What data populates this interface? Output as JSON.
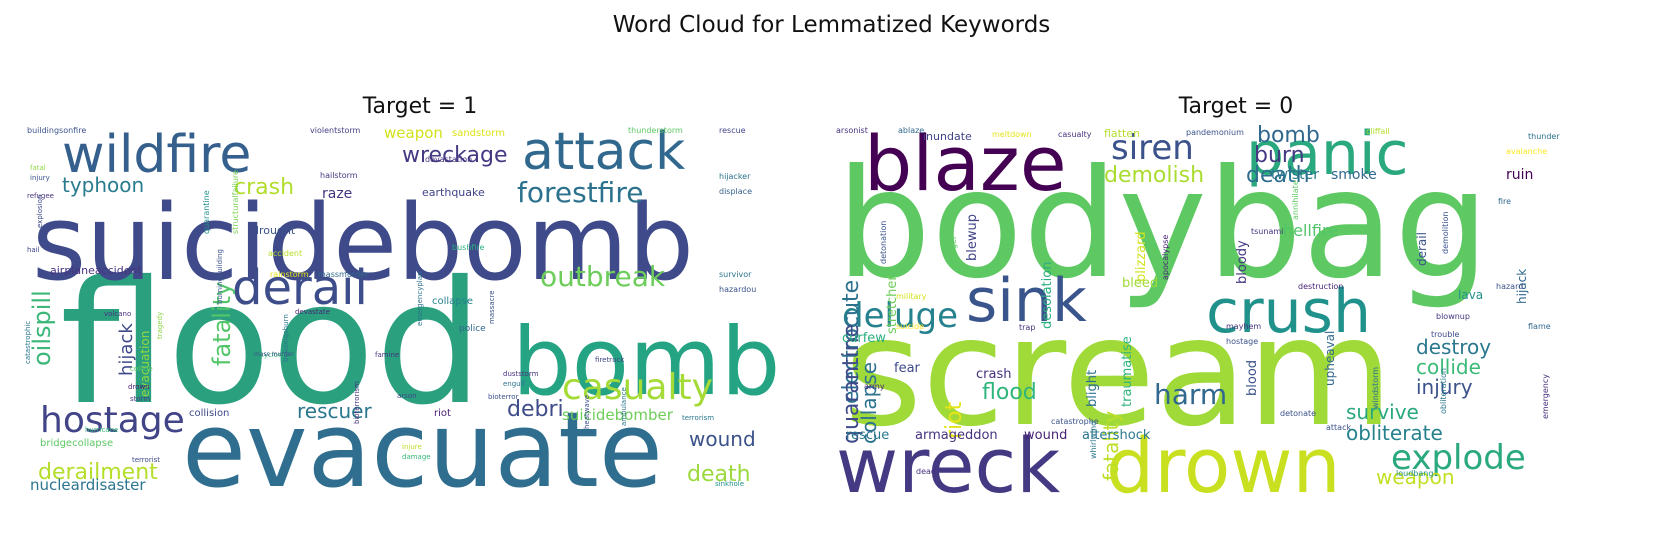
{
  "figure": {
    "title": "Word Cloud for Lemmatized Keywords"
  },
  "chart_data": [
    {
      "type": "wordcloud",
      "title": "Target = 1",
      "words": [
        {
          "text": "flood",
          "weight": 100,
          "color": "#2aa07f"
        },
        {
          "text": "suicidebomb",
          "weight": 92,
          "color": "#3f4a8a"
        },
        {
          "text": "evacuate",
          "weight": 84,
          "color": "#2f6e8e"
        },
        {
          "text": "bomb",
          "weight": 74,
          "color": "#25a484"
        },
        {
          "text": "wildfire",
          "weight": 46,
          "color": "#355f8d"
        },
        {
          "text": "attack",
          "weight": 46,
          "color": "#31688e"
        },
        {
          "text": "derail",
          "weight": 42,
          "color": "#3d4d8a"
        },
        {
          "text": "hostage",
          "weight": 30,
          "color": "#414487"
        },
        {
          "text": "casualty",
          "weight": 30,
          "color": "#a5db36"
        },
        {
          "text": "outbreak",
          "weight": 26,
          "color": "#6ccd5a"
        },
        {
          "text": "forestfire",
          "weight": 26,
          "color": "#2c728e"
        },
        {
          "text": "wreckage",
          "weight": 22,
          "color": "#443983"
        },
        {
          "text": "crash",
          "weight": 22,
          "color": "#b2dd2d"
        },
        {
          "text": "oilspill",
          "weight": 24,
          "color": "#3ab779"
        },
        {
          "text": "fatality",
          "weight": 24,
          "color": "#52c569"
        },
        {
          "text": "derailment",
          "weight": 22,
          "color": "#b5de2b"
        },
        {
          "text": "death",
          "weight": 22,
          "color": "#9bd93c"
        },
        {
          "text": "debri",
          "weight": 22,
          "color": "#3e4c8a"
        },
        {
          "text": "wound",
          "weight": 20,
          "color": "#3b528b"
        },
        {
          "text": "rescuer",
          "weight": 20,
          "color": "#2a778e"
        },
        {
          "text": "typhoon",
          "weight": 20,
          "color": "#2a7b8e"
        },
        {
          "text": "hijack",
          "weight": 18,
          "color": "#3e4989"
        },
        {
          "text": "weapon",
          "weight": 16,
          "color": "#d2e21b"
        },
        {
          "text": "suicidebomber",
          "weight": 15,
          "color": "#6ece58"
        },
        {
          "text": "nucleardisaster",
          "weight": 15,
          "color": "#2b758e"
        },
        {
          "text": "raze",
          "weight": 14,
          "color": "#46327e"
        },
        {
          "text": "evacuation",
          "weight": 12,
          "color": "#93d741"
        },
        {
          "text": "airplaneaccident",
          "weight": 11,
          "color": "#46337f"
        },
        {
          "text": "drought",
          "weight": 11,
          "color": "#3b528b"
        },
        {
          "text": "earthquake",
          "weight": 11,
          "color": "#414487"
        },
        {
          "text": "collision",
          "weight": 10,
          "color": "#3e4989"
        },
        {
          "text": "bridgecollapse",
          "weight": 10,
          "color": "#5cc863"
        },
        {
          "text": "collapse",
          "weight": 10,
          "color": "#26828e"
        },
        {
          "text": "sandstorm",
          "weight": 10,
          "color": "#dde318"
        },
        {
          "text": "riot",
          "weight": 10,
          "color": "#482173"
        },
        {
          "text": "police",
          "weight": 9,
          "color": "#31688e"
        },
        {
          "text": "buildingsonfire",
          "weight": 8,
          "color": "#3b528b"
        },
        {
          "text": "violentstorm",
          "weight": 8,
          "color": "#433e85"
        },
        {
          "text": "thunderstorm",
          "weight": 8,
          "color": "#5ec962"
        },
        {
          "text": "rescue",
          "weight": 8,
          "color": "#414487"
        },
        {
          "text": "hijacker",
          "weight": 8,
          "color": "#2c728e"
        },
        {
          "text": "displace",
          "weight": 8,
          "color": "#355f8d"
        },
        {
          "text": "hailstorm",
          "weight": 8,
          "color": "#453781"
        },
        {
          "text": "devastation",
          "weight": 8,
          "color": "#46327e"
        },
        {
          "text": "quarantine",
          "weight": 8,
          "color": "#21918c"
        },
        {
          "text": "structuralfailure",
          "weight": 8,
          "color": "#7ad151"
        },
        {
          "text": "accident",
          "weight": 8,
          "color": "#b8de29"
        },
        {
          "text": "bushfire",
          "weight": 8,
          "color": "#29af7f"
        },
        {
          "text": "rainstorm",
          "weight": 8,
          "color": "#e5e419"
        },
        {
          "text": "massmurder",
          "weight": 8,
          "color": "#31688e"
        },
        {
          "text": "survivor",
          "weight": 8,
          "color": "#2c728e"
        },
        {
          "text": "hazardou",
          "weight": 8,
          "color": "#3b528b"
        },
        {
          "text": "fatal",
          "weight": 7,
          "color": "#8fd744"
        },
        {
          "text": "injury",
          "weight": 7,
          "color": "#3b528b"
        },
        {
          "text": "refugee",
          "weight": 7,
          "color": "#46327e"
        },
        {
          "text": "hail",
          "weight": 7,
          "color": "#404688"
        },
        {
          "text": "explosion",
          "weight": 7,
          "color": "#3e4989"
        },
        {
          "text": "volcano",
          "weight": 7,
          "color": "#46327e"
        },
        {
          "text": "tragedy",
          "weight": 7,
          "color": "#8fd744"
        },
        {
          "text": "burningbuilding",
          "weight": 7,
          "color": "#3b528b"
        },
        {
          "text": "devastate",
          "weight": 7,
          "color": "#482475"
        },
        {
          "text": "cyclone",
          "weight": 7,
          "color": "#35b779"
        },
        {
          "text": "famine",
          "weight": 7,
          "color": "#46327e"
        },
        {
          "text": "buildingsburn",
          "weight": 7,
          "color": "#2a788e"
        },
        {
          "text": "emergencyplan",
          "weight": 7,
          "color": "#2c728e"
        },
        {
          "text": "catastrophic",
          "weight": 7,
          "color": "#2a788e"
        },
        {
          "text": "collide",
          "weight": 7,
          "color": "#5ec962"
        },
        {
          "text": "drown",
          "weight": 7,
          "color": "#481a6c"
        },
        {
          "text": "storm",
          "weight": 7,
          "color": "#443983"
        },
        {
          "text": "massacre",
          "weight": 7,
          "color": "#3b528b"
        },
        {
          "text": "engulf",
          "weight": 7,
          "color": "#2c728e"
        },
        {
          "text": "duststorm",
          "weight": 7,
          "color": "#46327e"
        },
        {
          "text": "arson",
          "weight": 7,
          "color": "#3e4989"
        },
        {
          "text": "bioterror",
          "weight": 7,
          "color": "#3b528b"
        },
        {
          "text": "firetruck",
          "weight": 7,
          "color": "#414487"
        },
        {
          "text": "terrorism",
          "weight": 7,
          "color": "#2a788e"
        },
        {
          "text": "hurricane",
          "weight": 7,
          "color": "#35b779"
        },
        {
          "text": "terrorist",
          "weight": 7,
          "color": "#3e4989"
        },
        {
          "text": "injure",
          "weight": 7,
          "color": "#bddf26"
        },
        {
          "text": "damage",
          "weight": 7,
          "color": "#35b779"
        },
        {
          "text": "heatwave",
          "weight": 7,
          "color": "#3b528b"
        },
        {
          "text": "ambulance",
          "weight": 7,
          "color": "#2a788e"
        },
        {
          "text": "sinkhole",
          "weight": 7,
          "color": "#21918c"
        },
        {
          "text": "bioterrorism",
          "weight": 7,
          "color": "#46327e"
        },
        {
          "text": "mass murder",
          "weight": 6,
          "color": "#3b528b"
        }
      ]
    },
    {
      "type": "wordcloud",
      "title": "Target = 0",
      "words": [
        {
          "text": "bodybag",
          "weight": 100,
          "color": "#5ec962"
        },
        {
          "text": "scream",
          "weight": 100,
          "color": "#a0da39"
        },
        {
          "text": "blaze",
          "weight": 54,
          "color": "#440154"
        },
        {
          "text": "wreck",
          "weight": 54,
          "color": "#443983"
        },
        {
          "text": "drown",
          "weight": 54,
          "color": "#c8e020"
        },
        {
          "text": "panic",
          "weight": 44,
          "color": "#2aa87e"
        },
        {
          "text": "sink",
          "weight": 44,
          "color": "#39558c"
        },
        {
          "text": "crush",
          "weight": 40,
          "color": "#21918c"
        },
        {
          "text": "deluge",
          "weight": 28,
          "color": "#26818e"
        },
        {
          "text": "siren",
          "weight": 28,
          "color": "#3b528b"
        },
        {
          "text": "explode",
          "weight": 28,
          "color": "#2aa87e"
        },
        {
          "text": "harm",
          "weight": 22,
          "color": "#31688e"
        },
        {
          "text": "bomb",
          "weight": 20,
          "color": "#31688e"
        },
        {
          "text": "burn",
          "weight": 20,
          "color": "#443983"
        },
        {
          "text": "death",
          "weight": 20,
          "color": "#2e6e8e"
        },
        {
          "text": "demolish",
          "weight": 20,
          "color": "#aadc32"
        },
        {
          "text": "electrocute",
          "weight": 20,
          "color": "#2c718e"
        },
        {
          "text": "quarantine",
          "weight": 20,
          "color": "#3e4a89"
        },
        {
          "text": "collapse",
          "weight": 20,
          "color": "#2c728e"
        },
        {
          "text": "fatality",
          "weight": 20,
          "color": "#bddf26"
        },
        {
          "text": "flood",
          "weight": 20,
          "color": "#2fb47c"
        },
        {
          "text": "riot",
          "weight": 20,
          "color": "#e5e419"
        },
        {
          "text": "collide",
          "weight": 18,
          "color": "#3aba76"
        },
        {
          "text": "injury",
          "weight": 18,
          "color": "#3b528b"
        },
        {
          "text": "destroy",
          "weight": 18,
          "color": "#2a788e"
        },
        {
          "text": "survive",
          "weight": 18,
          "color": "#2aa87e"
        },
        {
          "text": "obliterate",
          "weight": 18,
          "color": "#26818e"
        },
        {
          "text": "weapon",
          "weight": 18,
          "color": "#c2df23"
        },
        {
          "text": "hellfire",
          "weight": 14,
          "color": "#52c569"
        },
        {
          "text": "twister",
          "weight": 13,
          "color": "#2a788e"
        },
        {
          "text": "smoke",
          "weight": 13,
          "color": "#31688e"
        },
        {
          "text": "ruin",
          "weight": 13,
          "color": "#440154"
        },
        {
          "text": "stretcher",
          "weight": 12,
          "color": "#6ccd5a"
        },
        {
          "text": "blewup",
          "weight": 12,
          "color": "#414487"
        },
        {
          "text": "desolation",
          "weight": 12,
          "color": "#29af7f"
        },
        {
          "text": "blizzard",
          "weight": 12,
          "color": "#d2e21b"
        },
        {
          "text": "bleed",
          "weight": 12,
          "color": "#a2da37"
        },
        {
          "text": "bloody",
          "weight": 12,
          "color": "#443983"
        },
        {
          "text": "blood",
          "weight": 12,
          "color": "#3b528b"
        },
        {
          "text": "traumatise",
          "weight": 12,
          "color": "#2fb47c"
        },
        {
          "text": "blight",
          "weight": 12,
          "color": "#2c728e"
        },
        {
          "text": "crash",
          "weight": 12,
          "color": "#46327e"
        },
        {
          "text": "fear",
          "weight": 12,
          "color": "#3e4989"
        },
        {
          "text": "curfew",
          "weight": 12,
          "color": "#29af7f"
        },
        {
          "text": "rescue",
          "weight": 12,
          "color": "#2a788e"
        },
        {
          "text": "armageddon",
          "weight": 12,
          "color": "#46327e"
        },
        {
          "text": "aftershock",
          "weight": 12,
          "color": "#2a788e"
        },
        {
          "text": "wound",
          "weight": 12,
          "color": "#482475"
        },
        {
          "text": "upheaval",
          "weight": 11,
          "color": "#31688e"
        },
        {
          "text": "derail",
          "weight": 11,
          "color": "#3b528b"
        },
        {
          "text": "hijack",
          "weight": 11,
          "color": "#31688e"
        },
        {
          "text": "lava",
          "weight": 10,
          "color": "#21918c"
        },
        {
          "text": "inundate",
          "weight": 10,
          "color": "#414487"
        },
        {
          "text": "flatten",
          "weight": 9,
          "color": "#b5de2b"
        },
        {
          "text": "arsonist",
          "weight": 7,
          "color": "#46327e"
        },
        {
          "text": "ablaze",
          "weight": 7,
          "color": "#31688e"
        },
        {
          "text": "meltdown",
          "weight": 7,
          "color": "#e5e419"
        },
        {
          "text": "casualty",
          "weight": 7,
          "color": "#46327e"
        },
        {
          "text": "pandemonium",
          "weight": 7,
          "color": "#3b528b"
        },
        {
          "text": "cliffall",
          "weight": 7,
          "color": "#b5de2b"
        },
        {
          "text": "thunder",
          "weight": 7,
          "color": "#2c728e"
        },
        {
          "text": "avalanche",
          "weight": 7,
          "color": "#fde725"
        },
        {
          "text": "fire",
          "weight": 7,
          "color": "#31688e"
        },
        {
          "text": "tsunami",
          "weight": 7,
          "color": "#46327e"
        },
        {
          "text": "annihilate",
          "weight": 7,
          "color": "#5ec962"
        },
        {
          "text": "demolition",
          "weight": 7,
          "color": "#3b528b"
        },
        {
          "text": "hazard",
          "weight": 7,
          "color": "#3b528b"
        },
        {
          "text": "destruction",
          "weight": 7,
          "color": "#482475"
        },
        {
          "text": "blownup",
          "weight": 7,
          "color": "#443983"
        },
        {
          "text": "trouble",
          "weight": 7,
          "color": "#3e4989"
        },
        {
          "text": "flame",
          "weight": 7,
          "color": "#31688e"
        },
        {
          "text": "mayhem",
          "weight": 7,
          "color": "#46327e"
        },
        {
          "text": "hostage",
          "weight": 7,
          "color": "#3b528b"
        },
        {
          "text": "apocalypse",
          "weight": 7,
          "color": "#482475"
        },
        {
          "text": "detonation",
          "weight": 7,
          "color": "#3b528b"
        },
        {
          "text": "danger",
          "weight": 7,
          "color": "#5ec962"
        },
        {
          "text": "military",
          "weight": 7,
          "color": "#d2e21b"
        },
        {
          "text": "suicide",
          "weight": 7,
          "color": "#fde725"
        },
        {
          "text": "trap",
          "weight": 7,
          "color": "#46327e"
        },
        {
          "text": "catastrophe",
          "weight": 7,
          "color": "#3b528b"
        },
        {
          "text": "detonate",
          "weight": 7,
          "color": "#3b528b"
        },
        {
          "text": "windstorm",
          "weight": 7,
          "color": "#2c728e"
        },
        {
          "text": "obliteration",
          "weight": 7,
          "color": "#2a788e"
        },
        {
          "text": "emergency",
          "weight": 7,
          "color": "#46327e"
        },
        {
          "text": "army",
          "weight": 7,
          "color": "#482475"
        },
        {
          "text": "whirlwind",
          "weight": 7,
          "color": "#2a788e"
        },
        {
          "text": "attack",
          "weight": 7,
          "color": "#3b528b"
        },
        {
          "text": "dead",
          "weight": 7,
          "color": "#46327e"
        },
        {
          "text": "loudbang",
          "weight": 7,
          "color": "#21918c"
        }
      ]
    }
  ]
}
